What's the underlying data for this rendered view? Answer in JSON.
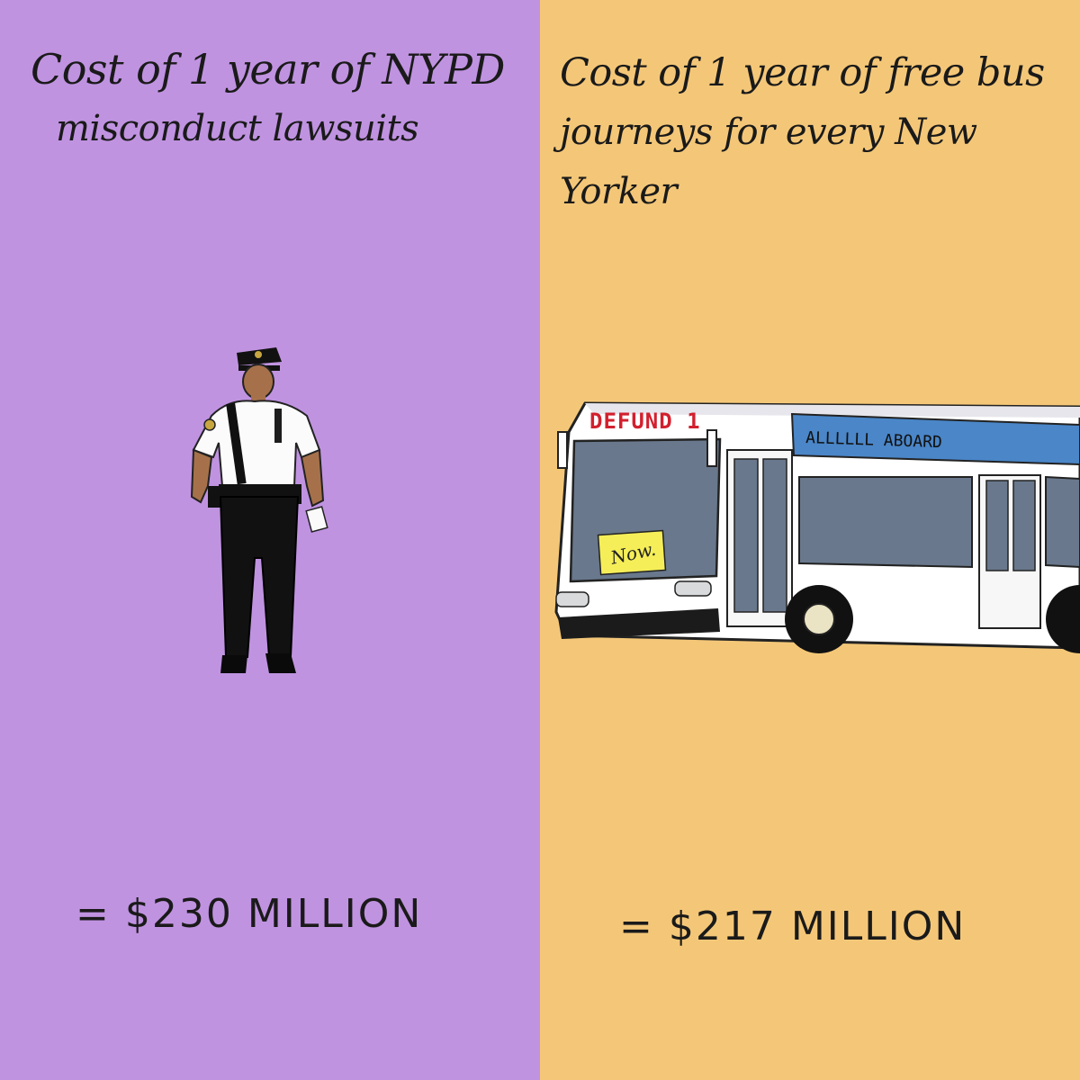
{
  "left": {
    "title_line1": "Cost of 1 year of NYPD",
    "title_line2": "misconduct lawsuits",
    "amount": "= $230 MILLION",
    "background": "#c093e1",
    "illustration": "police-officer"
  },
  "right": {
    "title_line1": "Cost of 1 year of free bus",
    "title_line2": "journeys for every New Yorker",
    "amount": "= $217 MILLION",
    "background": "#f4c778",
    "illustration": "city-bus",
    "bus": {
      "destination_sign": "DEFUND 1",
      "side_banner": "ALLLLLL ABOARD",
      "windshield_sign": "Now."
    }
  }
}
